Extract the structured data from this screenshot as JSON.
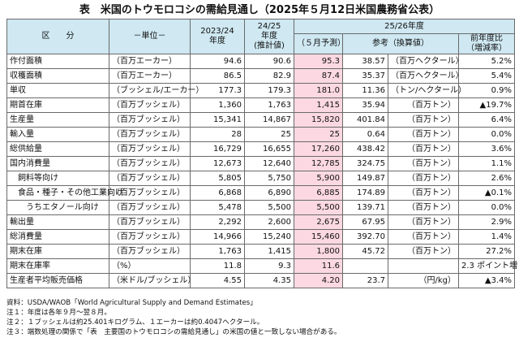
{
  "title": "表　米国のトウモロコシの需給見通し（2025年５月12日米国農務省公表）",
  "header": {
    "kubun": "区　　分",
    "unit": "－単位－",
    "col_2023": "2023/24\n年度",
    "col_2024": "24/25\n年度\n(推計値)",
    "group_2025": "25/26年度",
    "col_forecast": "（５月予測）",
    "col_ref": "参考（換算値）",
    "col_ratio": "前年度比\n（増減率）"
  },
  "rows": [
    {
      "label": "作付面積",
      "unit": "（百万エーカー）",
      "v2023": "94.6",
      "v2024": "90.6",
      "v2025": "95.3",
      "ref": "38.57",
      "ref_unit": "（百万ヘクタール）",
      "ratio": "5.2%"
    },
    {
      "label": "収穫面積",
      "unit": "（百万エーカー）",
      "v2023": "86.5",
      "v2024": "82.9",
      "v2025": "87.4",
      "ref": "35.37",
      "ref_unit": "（百万ヘクタール）",
      "ratio": "5.4%"
    },
    {
      "label": "単収",
      "unit": "（ブッシェル/エーカー）",
      "v2023": "177.3",
      "v2024": "179.3",
      "v2025": "181.0",
      "ref": "11.36",
      "ref_unit": "（トン/ヘクタール）",
      "ratio": "0.9%"
    },
    {
      "label": "期首在庫",
      "unit": "（百万ブッシェル）",
      "v2023": "1,360",
      "v2024": "1,763",
      "v2025": "1,415",
      "ref": "35.94",
      "ref_unit": "（百万トン）",
      "ratio": "▲19.7%"
    },
    {
      "label": "生産量",
      "unit": "（百万ブッシェル）",
      "v2023": "15,341",
      "v2024": "14,867",
      "v2025": "15,820",
      "ref": "401.84",
      "ref_unit": "（百万トン）",
      "ratio": "6.4%"
    },
    {
      "label": "輸入量",
      "unit": "（百万ブッシェル）",
      "v2023": "28",
      "v2024": "25",
      "v2025": "25",
      "ref": "0.64",
      "ref_unit": "（百万トン）",
      "ratio": "0.0%"
    },
    {
      "label": "総供給量",
      "unit": "（百万ブッシェル）",
      "v2023": "16,729",
      "v2024": "16,655",
      "v2025": "17,260",
      "ref": "438.42",
      "ref_unit": "（百万トン）",
      "ratio": "3.6%"
    },
    {
      "label": "国内消費量",
      "unit": "（百万ブッシェル）",
      "v2023": "12,673",
      "v2024": "12,640",
      "v2025": "12,785",
      "ref": "324.75",
      "ref_unit": "（百万トン）",
      "ratio": "1.1%"
    },
    {
      "label": "　飼料等向け",
      "unit": "（百万ブッシェル）",
      "v2023": "5,805",
      "v2024": "5,750",
      "v2025": "5,900",
      "ref": "149.87",
      "ref_unit": "（百万トン）",
      "ratio": "2.6%"
    },
    {
      "label": "　食品・種子・その他工業向け",
      "unit": "（百万ブッシェル）",
      "v2023": "6,868",
      "v2024": "6,890",
      "v2025": "6,885",
      "ref": "174.89",
      "ref_unit": "（百万トン）",
      "ratio": "▲0.1%"
    },
    {
      "label": "　　うちエタノール向け",
      "unit": "（百万ブッシェル）",
      "v2023": "5,478",
      "v2024": "5,500",
      "v2025": "5,500",
      "ref": "139.71",
      "ref_unit": "（百万トン）",
      "ratio": "0.0%"
    },
    {
      "label": "輸出量",
      "unit": "（百万ブッシェル）",
      "v2023": "2,292",
      "v2024": "2,600",
      "v2025": "2,675",
      "ref": "67.95",
      "ref_unit": "（百万トン）",
      "ratio": "2.9%"
    },
    {
      "label": "総消費量",
      "unit": "（百万ブッシェル）",
      "v2023": "14,966",
      "v2024": "15,240",
      "v2025": "15,460",
      "ref": "392.70",
      "ref_unit": "（百万トン）",
      "ratio": "1.4%"
    },
    {
      "label": "期末在庫",
      "unit": "（百万ブッシェル）",
      "v2023": "1,763",
      "v2024": "1,415",
      "v2025": "1,800",
      "ref": "45.72",
      "ref_unit": "（百万トン）",
      "ratio": "27.2%"
    },
    {
      "label": "期末在庫率",
      "unit": "（%）",
      "v2023": "11.8",
      "v2024": "9.3",
      "v2025": "11.6",
      "ref": "",
      "ref_unit": "",
      "ratio": "2.3 ポイント増"
    },
    {
      "label": "生産者平均販売価格",
      "unit": "（米ドル/ブッシェル）",
      "v2023": "4.55",
      "v2024": "4.35",
      "v2025": "4.20",
      "ref": "23.7",
      "ref_unit": "（円/kg）",
      "ratio": "▲3.4%"
    }
  ],
  "notes": [
    "資料：USDA/WAOB「World Agricultural Supply and Demand Estimates」",
    "注１：年度は各年９月～翌８月。",
    "注２：１ブッシェルは約25.401キログラム、１エーカーは約0.4047ヘクタール。",
    "注３：端数処理の関係で「表　主要国のトウモロコシの需給見通し」の米国の値と一致しない場合がある。"
  ]
}
